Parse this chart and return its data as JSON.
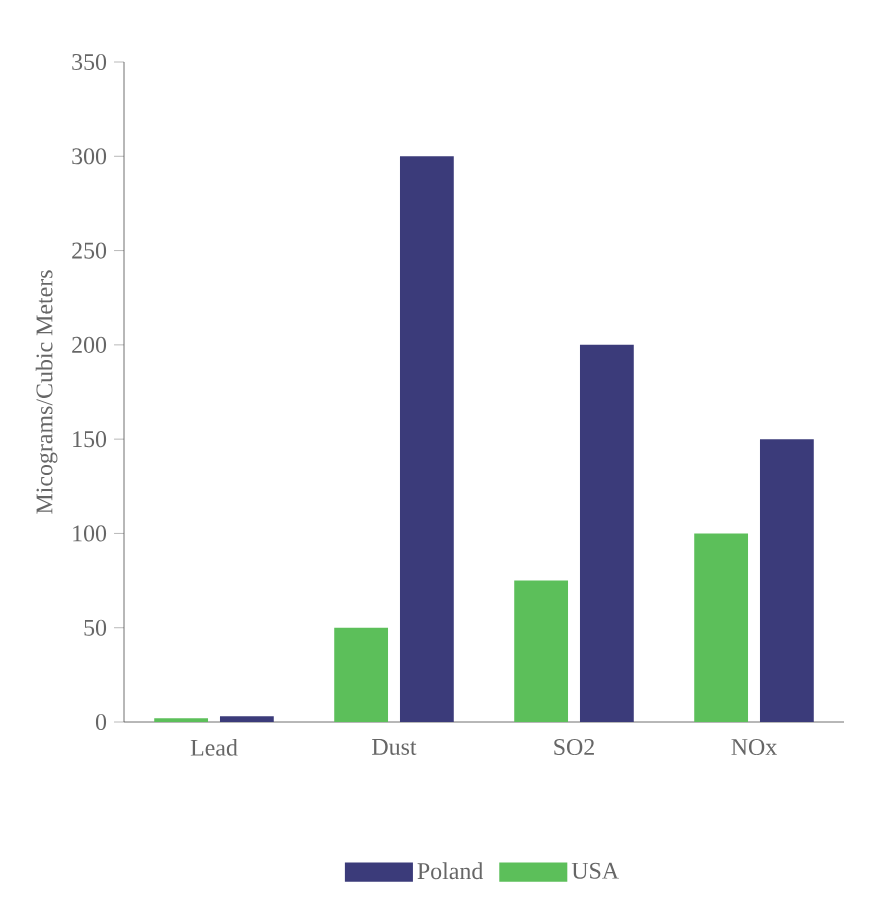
{
  "chart_data": {
    "type": "bar",
    "ylabel": "Micograms/Cubic Meters",
    "categories": [
      "Lead",
      "Dust",
      "SO2",
      "NOx"
    ],
    "series": [
      {
        "name": "USA",
        "color": "#5cbf5a",
        "values": [
          2,
          50,
          75,
          100
        ]
      },
      {
        "name": "Poland",
        "color": "#3b3b7a",
        "values": [
          3,
          300,
          200,
          150
        ]
      }
    ],
    "ylim": [
      0,
      350
    ],
    "yticks": [
      0,
      50,
      100,
      150,
      200,
      250,
      300,
      350
    ],
    "grid": false,
    "legend": "bottom"
  }
}
